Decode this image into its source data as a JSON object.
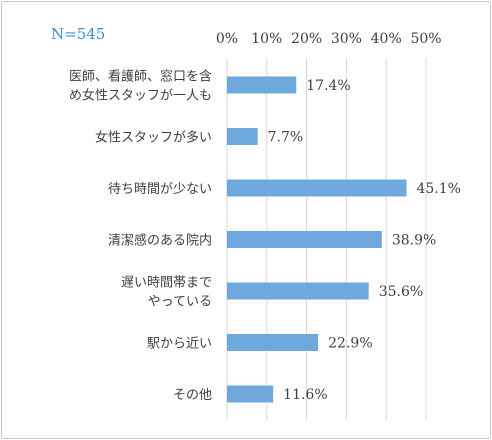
{
  "chart_data": {
    "type": "bar",
    "orientation": "horizontal",
    "annotation": "N=545",
    "categories": [
      [
        "医師、看護師、窓口を含",
        "め女性スタッフが一人も"
      ],
      [
        "女性スタッフが多い"
      ],
      [
        "待ち時間が少ない"
      ],
      [
        "清潔感のある院内"
      ],
      [
        "遅い時間帯まで",
        "やっている"
      ],
      [
        "駅から近い"
      ],
      [
        "その他"
      ]
    ],
    "values": [
      17.4,
      7.7,
      45.1,
      38.9,
      35.6,
      22.9,
      11.6
    ],
    "value_labels": [
      "17.4%",
      "7.7%",
      "45.1%",
      "38.9%",
      "35.6%",
      "22.9%",
      "11.6%"
    ],
    "xlim": [
      0,
      50
    ],
    "ticks": [
      0,
      10,
      20,
      30,
      40,
      50
    ],
    "tick_labels": [
      "0%",
      "10%",
      "20%",
      "30%",
      "40%",
      "50%"
    ],
    "xaxis_position": "top",
    "grid": true,
    "bar_color": "#6fa8dc",
    "annotation_color": "#3c8fd8"
  }
}
